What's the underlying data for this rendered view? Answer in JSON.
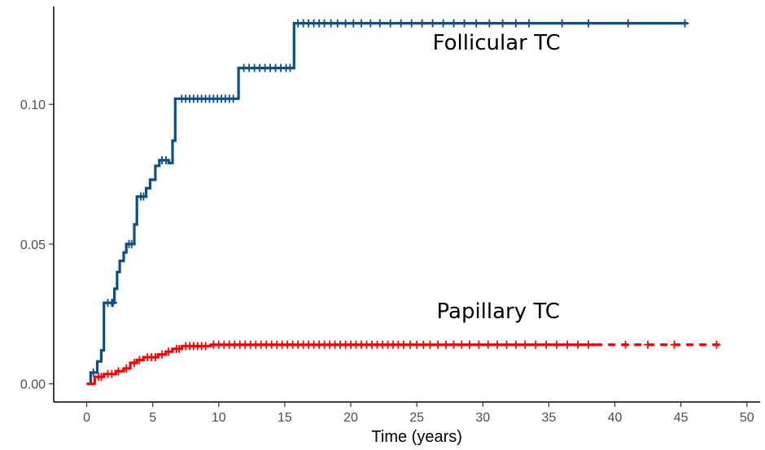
{
  "chart_data": {
    "type": "line",
    "title": "",
    "xlabel": "Time (years)",
    "ylabel": "",
    "xlim": [
      -2.5,
      51
    ],
    "ylim": [
      -0.0065,
      0.135
    ],
    "x_ticks": [
      0,
      5,
      10,
      15,
      20,
      25,
      30,
      35,
      40,
      45,
      50
    ],
    "x_tick_labels": [
      "0",
      "5",
      "10",
      "15",
      "20",
      "25",
      "30",
      "35",
      "40",
      "45",
      "50"
    ],
    "y_ticks": [
      0.0,
      0.05,
      0.1
    ],
    "y_tick_labels": [
      "0.00",
      "0.05",
      "0.10"
    ],
    "grid": false,
    "legend": "none",
    "series": [
      {
        "name": "Follicular TC",
        "label_at": [
          26.2,
          0.1195
        ],
        "color": "#0b4f8c",
        "line_style": "solid",
        "steps": [
          [
            0,
            0.0
          ],
          [
            0.3,
            0.004
          ],
          [
            0.8,
            0.008
          ],
          [
            1.1,
            0.012
          ],
          [
            1.3,
            0.029
          ],
          [
            2.1,
            0.034
          ],
          [
            2.3,
            0.04
          ],
          [
            2.5,
            0.044
          ],
          [
            2.8,
            0.047
          ],
          [
            3.0,
            0.05
          ],
          [
            3.6,
            0.057
          ],
          [
            3.8,
            0.067
          ],
          [
            4.5,
            0.07
          ],
          [
            4.8,
            0.073
          ],
          [
            5.2,
            0.078
          ],
          [
            5.5,
            0.08
          ],
          [
            6.2,
            0.079
          ],
          [
            6.5,
            0.087
          ],
          [
            6.7,
            0.102
          ],
          [
            11.5,
            0.113
          ],
          [
            15.7,
            0.129
          ],
          [
            45.5,
            0.129
          ]
        ],
        "censor_x": [
          0.5,
          1.6,
          1.9,
          2.0,
          3.2,
          3.4,
          4.1,
          4.3,
          5.7,
          6.0,
          7.2,
          7.5,
          7.8,
          8.1,
          8.4,
          8.7,
          9.0,
          9.3,
          9.6,
          9.9,
          10.2,
          10.5,
          10.8,
          11.1,
          11.9,
          12.3,
          12.7,
          13.1,
          13.5,
          13.9,
          14.3,
          14.7,
          15.1,
          15.4,
          16.0,
          16.4,
          16.8,
          17.2,
          17.6,
          18.0,
          18.5,
          19.0,
          19.6,
          20.2,
          20.8,
          21.5,
          22.2,
          23.0,
          23.8,
          24.6,
          25.4,
          26.2,
          27.0,
          27.8,
          28.6,
          29.5,
          30.5,
          31.5,
          32.5,
          33.5,
          36.0,
          38.0,
          41.0,
          45.3
        ]
      },
      {
        "name": "Papillary TC",
        "label_at": [
          26.5,
          0.0235
        ],
        "color": "#ff0000",
        "line_style": "solid-then-dashed",
        "dash_from_x": 38.5,
        "steps": [
          [
            0,
            0.0
          ],
          [
            0.6,
            0.0025
          ],
          [
            1.3,
            0.0035
          ],
          [
            2.2,
            0.0045
          ],
          [
            2.8,
            0.0055
          ],
          [
            3.3,
            0.0075
          ],
          [
            3.8,
            0.0085
          ],
          [
            4.3,
            0.0095
          ],
          [
            5.4,
            0.0105
          ],
          [
            6.0,
            0.0115
          ],
          [
            6.5,
            0.0125
          ],
          [
            7.2,
            0.0135
          ],
          [
            9.4,
            0.014
          ],
          [
            48.0,
            0.014
          ]
        ],
        "censor_x": [
          0.9,
          1.1,
          1.6,
          1.9,
          2.4,
          3.0,
          3.6,
          4.0,
          4.6,
          4.9,
          5.2,
          5.7,
          6.2,
          6.8,
          7.0,
          7.5,
          7.8,
          8.1,
          8.4,
          8.7,
          9.0,
          9.6,
          10.0,
          10.4,
          10.8,
          11.2,
          11.6,
          12.0,
          12.4,
          12.8,
          13.2,
          13.6,
          14.0,
          14.4,
          14.8,
          15.2,
          15.6,
          16.0,
          16.4,
          16.8,
          17.2,
          17.6,
          18.0,
          18.4,
          18.8,
          19.2,
          19.6,
          20.0,
          20.4,
          20.8,
          21.2,
          21.6,
          22.0,
          22.4,
          22.8,
          23.2,
          23.6,
          24.0,
          24.5,
          25.0,
          25.5,
          26.0,
          26.6,
          27.2,
          27.8,
          28.4,
          29.0,
          29.7,
          30.4,
          31.1,
          31.8,
          32.5,
          33.2,
          34.0,
          34.8,
          35.6,
          36.4,
          37.2,
          38.0,
          40.8,
          42.5,
          44.5,
          47.7
        ]
      }
    ]
  }
}
